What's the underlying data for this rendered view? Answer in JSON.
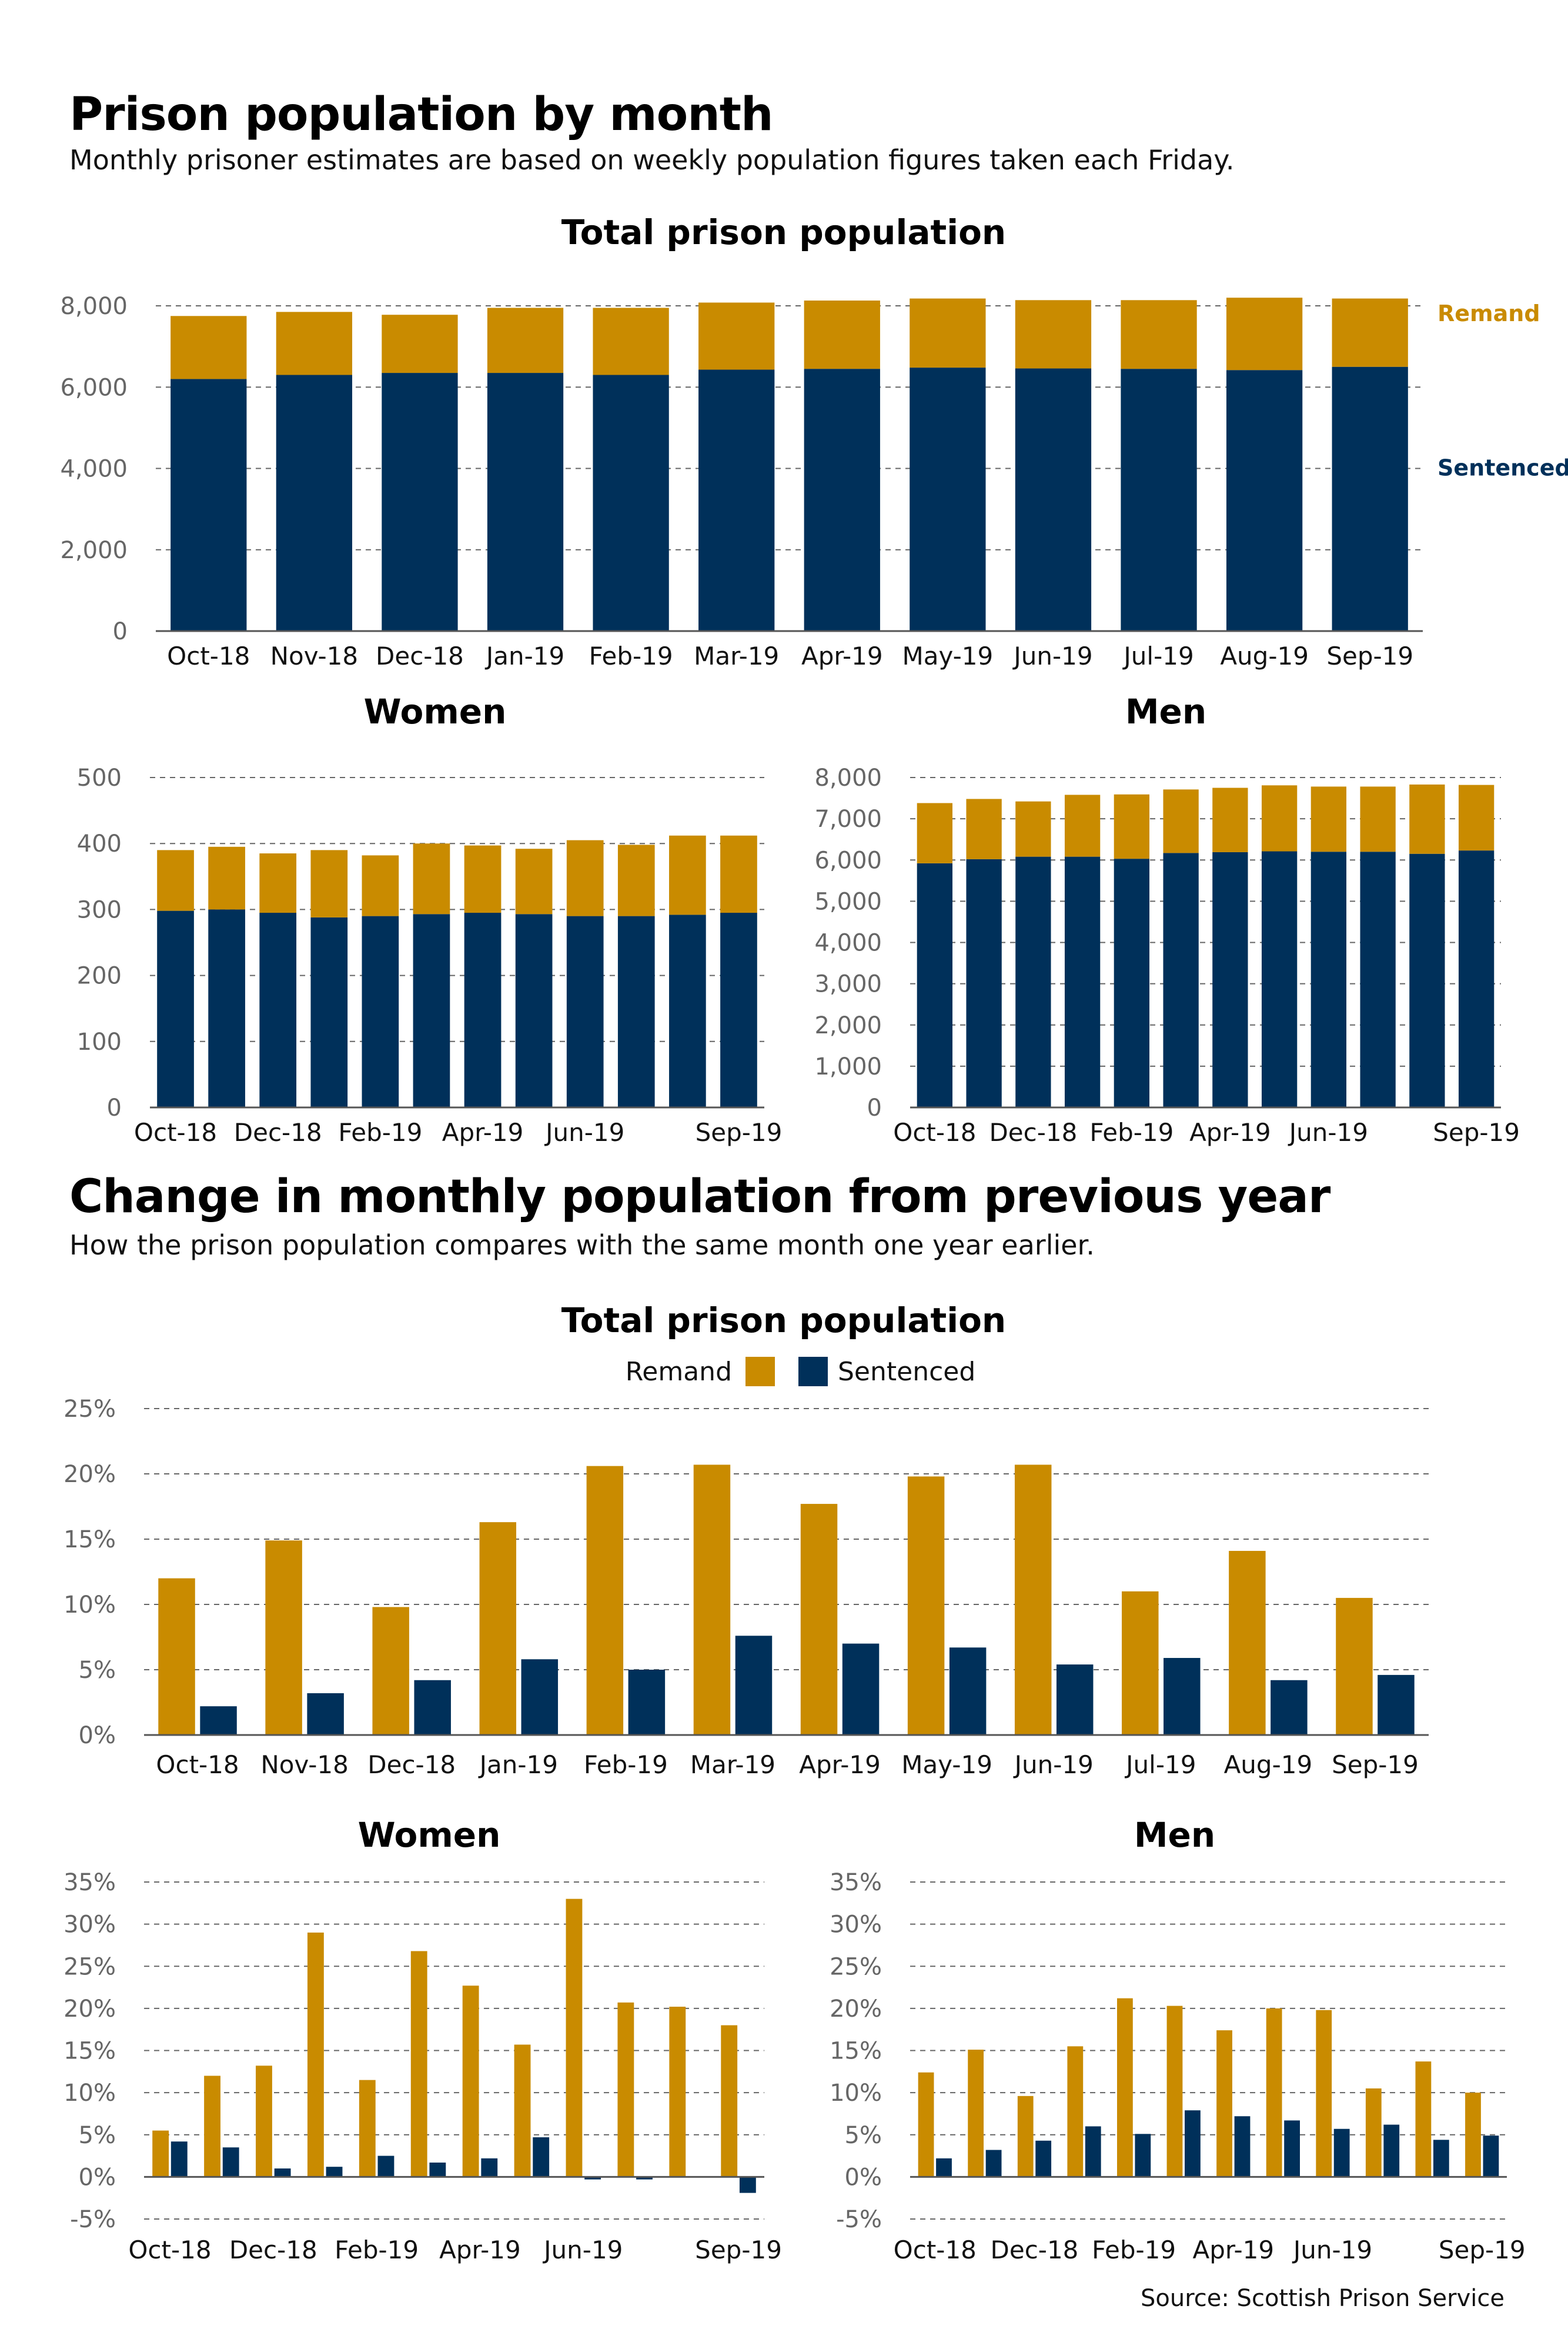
{
  "colors": {
    "remand": "#C98B00",
    "sentenced": "#00305A",
    "grid": "#666666",
    "tick_text": "#666666"
  },
  "section1": {
    "title": "Prison population by month",
    "subtitle": "Monthly prisoner estimates are based on weekly population figures taken each Friday."
  },
  "section2": {
    "title": "Change in monthly population from previous year",
    "subtitle": "How the prison population compares with the same month one year earlier."
  },
  "source": "Source: Scottish Prison Service",
  "chart_data": [
    {
      "id": "pop-total",
      "type": "bar",
      "stacked": true,
      "title": "Total prison population",
      "categories": [
        "Oct-18",
        "Nov-18",
        "Dec-18",
        "Jan-19",
        "Feb-19",
        "Mar-19",
        "Apr-19",
        "May-19",
        "Jun-19",
        "Jul-19",
        "Aug-19",
        "Sep-19"
      ],
      "category_labels": [
        "Oct-18",
        "Nov-18",
        "Dec-18",
        "Jan-19",
        "Feb-19",
        "Mar-19",
        "Apr-19",
        "May-19",
        "Jun-19",
        "Jul-19",
        "Aug-19",
        "Sep-19"
      ],
      "series": [
        {
          "name": "Sentenced",
          "color": "#00305A",
          "values": [
            6200,
            6300,
            6350,
            6350,
            6300,
            6430,
            6450,
            6480,
            6460,
            6450,
            6420,
            6500
          ]
        },
        {
          "name": "Remand",
          "color": "#C98B00",
          "values": [
            1550,
            1550,
            1430,
            1600,
            1650,
            1650,
            1680,
            1700,
            1680,
            1690,
            1780,
            1680
          ]
        }
      ],
      "ylim": [
        0,
        8000
      ],
      "yticks": [
        "0",
        "2,000",
        "4,000",
        "6,000",
        "8,000"
      ],
      "legend": "right-side labels",
      "grid": true
    },
    {
      "id": "pop-women",
      "type": "bar",
      "stacked": true,
      "title": "Women",
      "categories": [
        "Oct-18",
        "Nov-18",
        "Dec-18",
        "Jan-19",
        "Feb-19",
        "Mar-19",
        "Apr-19",
        "May-19",
        "Jun-19",
        "Jul-19",
        "Aug-19",
        "Sep-19"
      ],
      "category_labels": [
        "Oct-18",
        "",
        "Dec-18",
        "",
        "Feb-19",
        "",
        "Apr-19",
        "",
        "Jun-19",
        "",
        "",
        "Sep-19"
      ],
      "series": [
        {
          "name": "Sentenced",
          "color": "#00305A",
          "values": [
            298,
            300,
            295,
            288,
            290,
            293,
            295,
            293,
            290,
            290,
            292,
            295
          ]
        },
        {
          "name": "Remand",
          "color": "#C98B00",
          "values": [
            92,
            95,
            90,
            102,
            92,
            107,
            102,
            99,
            115,
            108,
            120,
            117
          ]
        }
      ],
      "ylim": [
        0,
        500
      ],
      "yticks": [
        "0",
        "100",
        "200",
        "300",
        "400",
        "500"
      ],
      "grid": true
    },
    {
      "id": "pop-men",
      "type": "bar",
      "stacked": true,
      "title": "Men",
      "categories": [
        "Oct-18",
        "Nov-18",
        "Dec-18",
        "Jan-19",
        "Feb-19",
        "Mar-19",
        "Apr-19",
        "May-19",
        "Jun-19",
        "Jul-19",
        "Aug-19",
        "Sep-19"
      ],
      "category_labels": [
        "Oct-18",
        "",
        "Dec-18",
        "",
        "Feb-19",
        "",
        "Apr-19",
        "",
        "Jun-19",
        "",
        "",
        "Sep-19"
      ],
      "series": [
        {
          "name": "Sentenced",
          "color": "#00305A",
          "values": [
            5920,
            6020,
            6080,
            6080,
            6030,
            6170,
            6190,
            6210,
            6200,
            6200,
            6150,
            6230
          ]
        },
        {
          "name": "Remand",
          "color": "#C98B00",
          "values": [
            1460,
            1460,
            1340,
            1500,
            1560,
            1540,
            1560,
            1600,
            1580,
            1580,
            1680,
            1590
          ]
        }
      ],
      "ylim": [
        0,
        8000
      ],
      "yticks": [
        "0",
        "1,000",
        "2,000",
        "3,000",
        "4,000",
        "5,000",
        "6,000",
        "7,000",
        "8,000"
      ],
      "grid": true
    },
    {
      "id": "chg-total",
      "type": "bar",
      "stacked": false,
      "title": "Total prison population",
      "categories": [
        "Oct-18",
        "Nov-18",
        "Dec-18",
        "Jan-19",
        "Feb-19",
        "Mar-19",
        "Apr-19",
        "May-19",
        "Jun-19",
        "Jul-19",
        "Aug-19",
        "Sep-19"
      ],
      "category_labels": [
        "Oct-18",
        "Nov-18",
        "Dec-18",
        "Jan-19",
        "Feb-19",
        "Mar-19",
        "Apr-19",
        "May-19",
        "Jun-19",
        "Jul-19",
        "Aug-19",
        "Sep-19"
      ],
      "series": [
        {
          "name": "Remand",
          "color": "#C98B00",
          "values": [
            12.0,
            14.9,
            9.8,
            16.3,
            20.6,
            20.7,
            17.7,
            19.8,
            20.7,
            11.0,
            14.1,
            10.5
          ]
        },
        {
          "name": "Sentenced",
          "color": "#00305A",
          "values": [
            2.2,
            3.2,
            4.2,
            5.8,
            5.0,
            7.6,
            7.0,
            6.7,
            5.4,
            5.9,
            4.2,
            4.6
          ]
        }
      ],
      "ylim": [
        0,
        25
      ],
      "yticks": [
        "0%",
        "5%",
        "10%",
        "15%",
        "20%",
        "25%"
      ],
      "legend": "top",
      "grid": true
    },
    {
      "id": "chg-women",
      "type": "bar",
      "stacked": false,
      "title": "Women",
      "categories": [
        "Oct-18",
        "Nov-18",
        "Dec-18",
        "Jan-19",
        "Feb-19",
        "Mar-19",
        "Apr-19",
        "May-19",
        "Jun-19",
        "Jul-19",
        "Aug-19",
        "Sep-19"
      ],
      "category_labels": [
        "Oct-18",
        "",
        "Dec-18",
        "",
        "Feb-19",
        "",
        "Apr-19",
        "",
        "Jun-19",
        "",
        "",
        "Sep-19"
      ],
      "series": [
        {
          "name": "Remand",
          "color": "#C98B00",
          "values": [
            5.5,
            12.0,
            13.2,
            29.0,
            11.5,
            26.8,
            22.7,
            15.7,
            33.0,
            20.7,
            20.2,
            18.0
          ]
        },
        {
          "name": "Sentenced",
          "color": "#00305A",
          "values": [
            4.2,
            3.5,
            1.0,
            1.2,
            2.5,
            1.7,
            2.2,
            4.7,
            -0.3,
            -0.3,
            0.0,
            -1.9
          ]
        }
      ],
      "ylim": [
        -5,
        35
      ],
      "yticks": [
        "-5%",
        "0%",
        "5%",
        "10%",
        "15%",
        "20%",
        "25%",
        "30%",
        "35%"
      ],
      "grid": true
    },
    {
      "id": "chg-men",
      "type": "bar",
      "stacked": false,
      "title": "Men",
      "categories": [
        "Oct-18",
        "Nov-18",
        "Dec-18",
        "Jan-19",
        "Feb-19",
        "Mar-19",
        "Apr-19",
        "May-19",
        "Jun-19",
        "Jul-19",
        "Aug-19",
        "Sep-19"
      ],
      "category_labels": [
        "Oct-18",
        "",
        "Dec-18",
        "",
        "Feb-19",
        "",
        "Apr-19",
        "",
        "Jun-19",
        "",
        "",
        "Sep-19"
      ],
      "series": [
        {
          "name": "Remand",
          "color": "#C98B00",
          "values": [
            12.4,
            15.1,
            9.6,
            15.5,
            21.2,
            20.3,
            17.4,
            20.0,
            19.8,
            10.5,
            13.7,
            10.0
          ]
        },
        {
          "name": "Sentenced",
          "color": "#00305A",
          "values": [
            2.2,
            3.2,
            4.3,
            6.0,
            5.1,
            7.9,
            7.2,
            6.7,
            5.7,
            6.2,
            4.4,
            4.9
          ]
        }
      ],
      "ylim": [
        -5,
        35
      ],
      "yticks": [
        "-5%",
        "0%",
        "5%",
        "10%",
        "15%",
        "20%",
        "25%",
        "30%",
        "35%"
      ],
      "grid": true
    }
  ]
}
